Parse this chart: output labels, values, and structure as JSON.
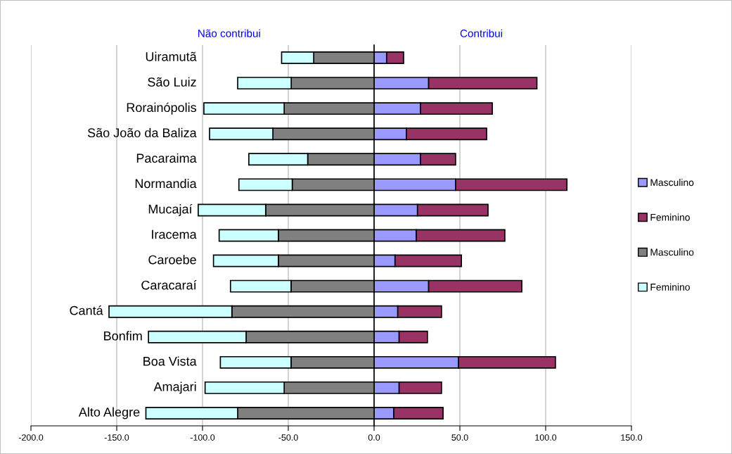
{
  "chart_data": {
    "type": "bar",
    "orientation": "horizontal",
    "stacked": true,
    "categories": [
      "Uiramutã",
      "São Luiz",
      "Rorainópolis",
      "São João da Baliza",
      "Pacaraima",
      "Normandia",
      "Mucajaí",
      "Iracema",
      "Caroebe",
      "Caracaraí",
      "Cantá",
      "Bonfim",
      "Boa Vista",
      "Amajari",
      "Alto Alegre"
    ],
    "series": [
      {
        "name": "Masculino",
        "color": "#9999ff",
        "values": [
          7.3,
          31.8,
          27.0,
          18.8,
          27.0,
          47.5,
          25.3,
          24.6,
          12.2,
          31.8,
          13.8,
          14.6,
          49.2,
          14.6,
          11.5
        ]
      },
      {
        "name": "Feminino",
        "color": "#993366",
        "values": [
          9.9,
          63.1,
          41.9,
          46.8,
          20.5,
          64.9,
          41.1,
          51.6,
          38.7,
          54.3,
          25.5,
          16.5,
          56.5,
          24.7,
          28.7
        ]
      },
      {
        "name": "Masculino",
        "color": "#808080",
        "values": [
          -35.2,
          -48.3,
          -52.4,
          -59.0,
          -38.7,
          -47.7,
          -63.2,
          -55.8,
          -55.8,
          -48.4,
          -82.9,
          -74.6,
          -48.4,
          -52.4,
          -79.5
        ]
      },
      {
        "name": "Feminino",
        "color": "#ccffff",
        "values": [
          -18.7,
          -31.2,
          -46.8,
          -36.9,
          -34.3,
          -31.1,
          -39.3,
          -34.5,
          -37.8,
          -35.3,
          -71.6,
          -56.9,
          -41.2,
          -46.1,
          -53.5
        ]
      }
    ],
    "xlim": [
      -200,
      150
    ],
    "xticks": [
      {
        "value": -200,
        "label": "-200.0"
      },
      {
        "value": -150,
        "label": "-150.0"
      },
      {
        "value": -100,
        "label": "-100.0"
      },
      {
        "value": -50,
        "label": "-50.0"
      },
      {
        "value": 0,
        "label": "0.0"
      },
      {
        "value": 50,
        "label": "50.0"
      },
      {
        "value": 100,
        "label": "100.0"
      },
      {
        "value": 150,
        "label": "150.0"
      }
    ],
    "grid": "x",
    "legend": "right",
    "annotations": [
      "Não contribui",
      "Contribui"
    ]
  }
}
